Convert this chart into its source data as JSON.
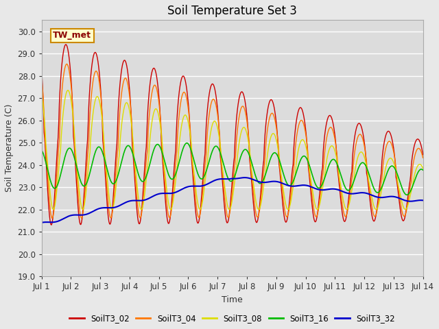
{
  "title": "Soil Temperature Set 3",
  "xlabel": "Time",
  "ylabel": "Soil Temperature (C)",
  "ylim": [
    19.0,
    30.5
  ],
  "xlim": [
    0,
    13
  ],
  "yticks": [
    19.0,
    20.0,
    21.0,
    22.0,
    23.0,
    24.0,
    25.0,
    26.0,
    27.0,
    28.0,
    29.0,
    30.0
  ],
  "xtick_labels": [
    "Jul 1",
    "Jul 2",
    "Jul 3",
    "Jul 4",
    "Jul 5",
    "Jul 6",
    "Jul 7",
    "Jul 8",
    "Jul 9",
    "Jul 10",
    "Jul 11",
    "Jul 12",
    "Jul 13",
    "Jul 14"
  ],
  "xtick_positions": [
    0,
    1,
    2,
    3,
    4,
    5,
    6,
    7,
    8,
    9,
    10,
    11,
    12,
    13
  ],
  "annotation_text": "TW_met",
  "colors": {
    "SoilT3_02": "#cc0000",
    "SoilT3_04": "#ff7700",
    "SoilT3_08": "#dddd00",
    "SoilT3_16": "#00bb00",
    "SoilT3_32": "#0000cc"
  },
  "fig_bg": "#e8e8e8",
  "ax_bg": "#dcdcdc",
  "grid_color": "#ffffff"
}
